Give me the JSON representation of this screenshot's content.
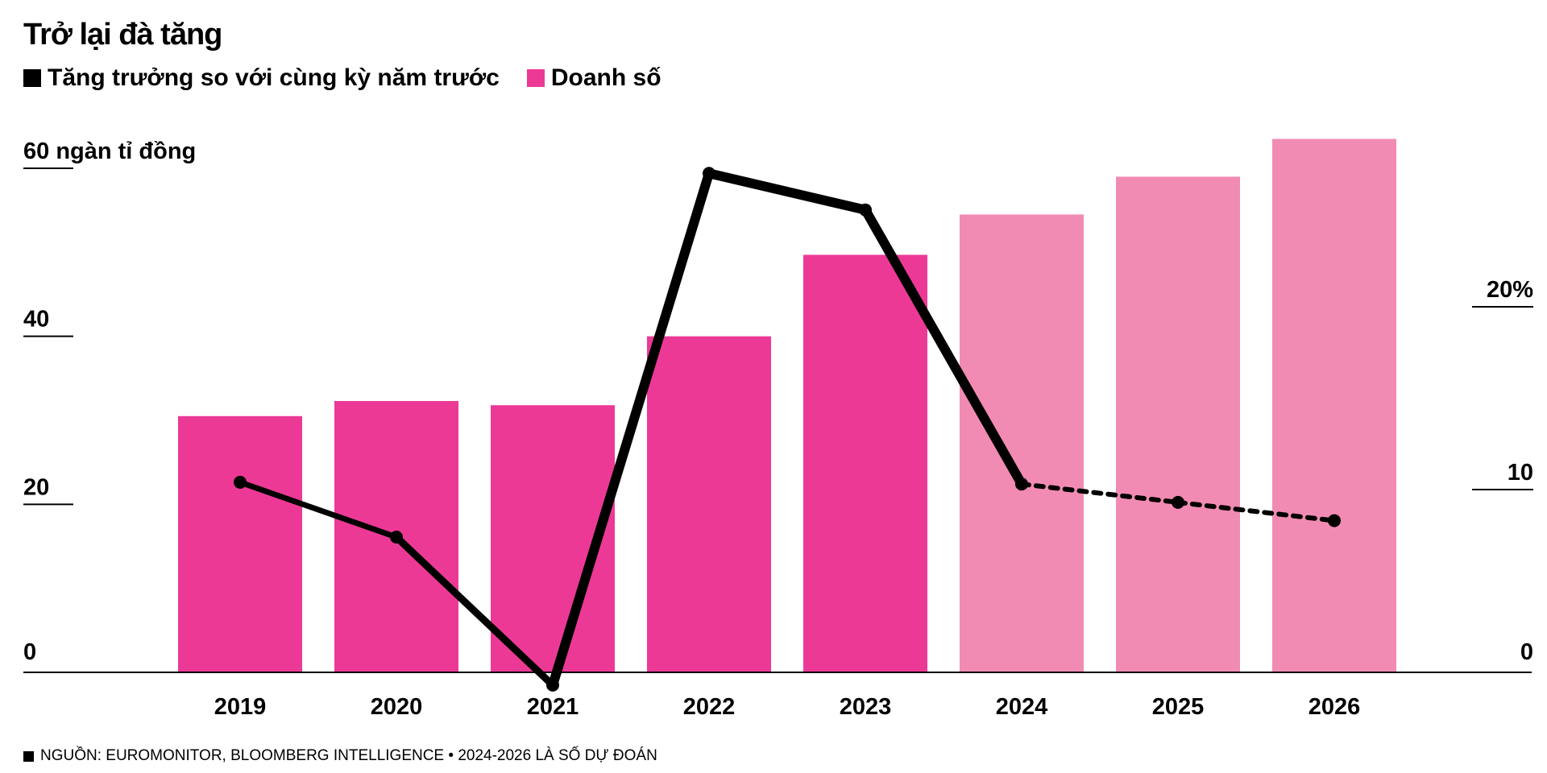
{
  "title": "Trở lại đà tăng",
  "legend": [
    {
      "label": "Tăng trưởng so với cùng kỳ năm trước",
      "color": "#000000"
    },
    {
      "label": "Doanh số",
      "color": "#ed3996"
    }
  ],
  "footer": "NGUỒN: EUROMONITOR, BLOOMBERG INTELLIGENCE • 2024-2026 LÀ SỐ DỰ ĐOÁN",
  "colors": {
    "actual": "#ed3996",
    "forecast": "#f28bb3",
    "line": "#000000",
    "axis": "#000000"
  },
  "chart_data": {
    "type": "bar",
    "categories": [
      "2019",
      "2020",
      "2021",
      "2022",
      "2023",
      "2024",
      "2025",
      "2026"
    ],
    "series": [
      {
        "name": "Doanh số",
        "axis": "left",
        "type": "bar",
        "values": [
          30.5,
          32.3,
          31.8,
          40.0,
          49.7,
          54.5,
          59.0,
          63.5
        ],
        "forecast": [
          false,
          false,
          false,
          false,
          false,
          true,
          true,
          true
        ]
      },
      {
        "name": "Tăng trưởng so với cùng kỳ năm trước",
        "axis": "right",
        "type": "line",
        "values": [
          10.4,
          7.4,
          -0.7,
          27.3,
          25.3,
          10.3,
          9.3,
          8.3
        ],
        "forecast": [
          false,
          false,
          false,
          false,
          false,
          true,
          true,
          true
        ]
      }
    ],
    "left_axis": {
      "ticks": [
        0,
        20,
        40,
        60
      ],
      "tick_labels": [
        "0",
        "20",
        "40",
        "60 ngàn tỉ đồng"
      ],
      "ylim": [
        0,
        60
      ]
    },
    "right_axis": {
      "ticks": [
        0,
        10,
        20
      ],
      "tick_labels": [
        "0",
        "10",
        "20%"
      ],
      "ylim": [
        0,
        20
      ]
    },
    "grid": false
  }
}
